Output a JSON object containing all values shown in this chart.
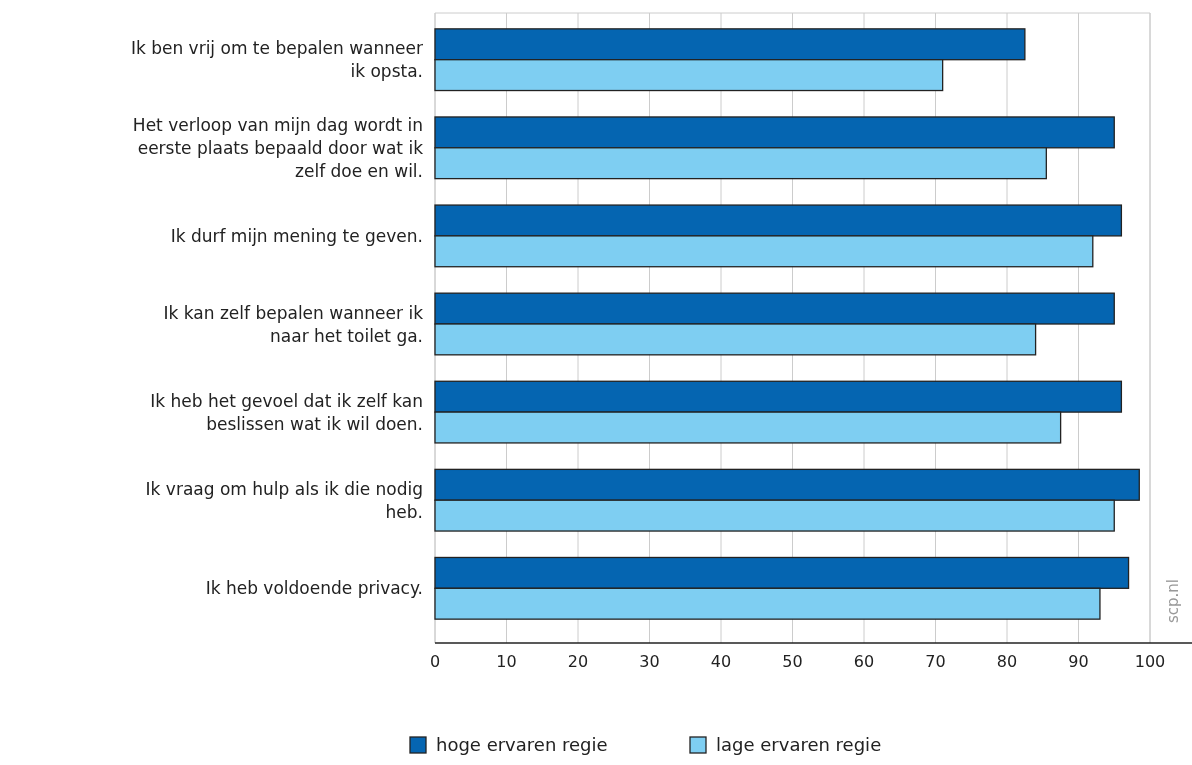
{
  "chart_data": {
    "type": "bar",
    "orientation": "horizontal",
    "categories": [
      "Ik ben vrij om te bepalen wanneer ik opsta.",
      "Het verloop van mijn dag wordt in eerste plaats bepaald door wat ik zelf doe en wil.",
      "Ik durf mijn mening te geven.",
      "Ik kan zelf bepalen wanneer ik naar het toilet ga.",
      "Ik heb het gevoel dat ik zelf kan beslissen wat ik wil doen.",
      "Ik vraag om hulp als ik die nodig heb.",
      "Ik heb voldoende privacy."
    ],
    "series": [
      {
        "name": "hoge ervaren regie",
        "color": "#0565b1",
        "values": [
          82.5,
          95,
          96,
          95,
          96,
          98.5,
          97
        ]
      },
      {
        "name": "lage ervaren regie",
        "color": "#7ecef2",
        "values": [
          71,
          85.5,
          92,
          84,
          87.5,
          95,
          93
        ]
      }
    ],
    "xlim": [
      0,
      100
    ],
    "xticks": [
      0,
      10,
      20,
      30,
      40,
      50,
      60,
      70,
      80,
      90,
      100
    ],
    "grid": "x",
    "legend": "bottom",
    "annotations": [
      "scp.nl"
    ]
  }
}
